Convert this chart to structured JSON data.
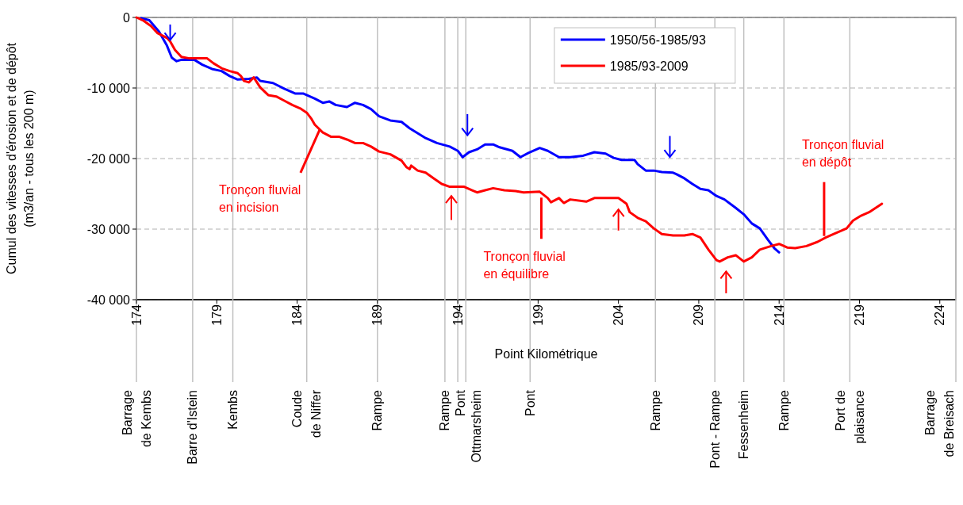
{
  "chart_data": {
    "type": "line",
    "xlabel": "Point Kilométrique",
    "ylabel": "Cumul des vitesses d'érosion et de dépôt\n(m3/an - tous les 200 m)",
    "xlim": [
      174,
      225
    ],
    "xticks": [
      174,
      179,
      184,
      189,
      194,
      199,
      204,
      209,
      214,
      219,
      224
    ],
    "ylim": [
      -40000,
      0
    ],
    "yticks": [
      {
        "value": -40000,
        "label": "-40 000"
      },
      {
        "value": -30000,
        "label": "-30 000"
      },
      {
        "value": -20000,
        "label": "-20 000"
      },
      {
        "value": -10000,
        "label": "-10 000"
      },
      0
    ],
    "grid": "y",
    "legend": "top right",
    "line_style": "solid",
    "marker": "none",
    "series": [
      {
        "name": "1950/56-1985/93",
        "color": "#0000ff",
        "x": [
          174.3,
          174.8,
          175.4,
          175.9,
          176.2,
          176.5,
          176.8,
          177.6,
          178.1,
          178.7,
          179.3,
          179.8,
          180.3,
          181.0,
          181.5,
          181.7,
          182.5,
          183.2,
          183.9,
          184.4,
          185.1,
          185.6,
          186.0,
          186.4,
          187.1,
          187.6,
          188.1,
          188.6,
          189.1,
          189.8,
          190.5,
          191.0,
          191.5,
          192.0,
          192.7,
          193.5,
          194.0,
          194.3,
          194.7,
          195.2,
          195.7,
          196.2,
          196.6,
          197.4,
          197.9,
          198.4,
          199.1,
          199.6,
          200.3,
          201.0,
          201.8,
          202.5,
          203.2,
          203.7,
          204.2,
          205.0,
          205.2,
          205.7,
          206.2,
          206.7,
          207.4,
          207.6,
          208.1,
          208.6,
          209.1,
          209.6,
          210.1,
          210.6,
          211.3,
          211.8,
          212.3,
          212.8,
          213.3,
          213.7,
          214.0
        ],
        "values": [
          -100,
          -400,
          -2000,
          -4000,
          -5700,
          -6200,
          -6000,
          -6000,
          -6700,
          -7300,
          -7600,
          -8300,
          -8800,
          -8700,
          -8500,
          -9000,
          -9300,
          -10100,
          -10800,
          -10800,
          -11500,
          -12100,
          -11900,
          -12400,
          -12700,
          -12100,
          -12400,
          -13000,
          -14000,
          -14600,
          -14800,
          -15700,
          -16400,
          -17100,
          -17800,
          -18300,
          -18900,
          -19800,
          -19100,
          -18700,
          -18000,
          -18000,
          -18400,
          -18900,
          -19800,
          -19200,
          -18500,
          -18900,
          -19800,
          -19800,
          -19600,
          -19100,
          -19300,
          -19900,
          -20200,
          -20200,
          -20800,
          -21700,
          -21700,
          -21900,
          -22000,
          -22200,
          -22800,
          -23600,
          -24300,
          -24500,
          -25300,
          -25800,
          -27000,
          -27900,
          -29200,
          -29900,
          -31500,
          -32700,
          -33300
        ]
      },
      {
        "name": "1985/93-2009",
        "color": "#ff0000",
        "x": [
          174.0,
          174.4,
          174.9,
          175.3,
          175.9,
          176.1,
          176.4,
          176.8,
          177.3,
          178.4,
          178.8,
          179.3,
          179.8,
          180.3,
          180.5,
          180.7,
          181.0,
          181.3,
          181.7,
          182.2,
          182.7,
          183.2,
          183.7,
          184.2,
          184.6,
          184.9,
          185.1,
          185.6,
          186.1,
          186.6,
          187.1,
          187.6,
          188.1,
          188.6,
          189.1,
          189.8,
          190.5,
          190.8,
          191.0,
          191.1,
          191.5,
          192.0,
          192.5,
          193.0,
          193.5,
          194.4,
          194.9,
          195.2,
          195.7,
          196.2,
          196.9,
          197.6,
          198.1,
          199.1,
          199.6,
          199.8,
          200.3,
          200.6,
          201.0,
          202.0,
          202.5,
          204.0,
          204.5,
          204.7,
          205.2,
          205.7,
          206.2,
          206.7,
          207.4,
          208.1,
          208.6,
          209.1,
          209.6,
          210.1,
          210.3,
          210.8,
          211.3,
          211.8,
          212.3,
          212.8,
          213.5,
          214.0,
          214.5,
          215.0,
          215.7,
          216.4,
          216.9,
          217.4,
          218.2,
          218.6,
          219.1,
          219.6,
          220.4
        ],
        "values": [
          0,
          -400,
          -1200,
          -2200,
          -2900,
          -3400,
          -4600,
          -5600,
          -5800,
          -5800,
          -6500,
          -7200,
          -7600,
          -7900,
          -8300,
          -9000,
          -9200,
          -8500,
          -9900,
          -11000,
          -11200,
          -11800,
          -12400,
          -12900,
          -13500,
          -14400,
          -15200,
          -16300,
          -16900,
          -16900,
          -17300,
          -17800,
          -17800,
          -18300,
          -19000,
          -19400,
          -20300,
          -21200,
          -21500,
          -21000,
          -21700,
          -22000,
          -22800,
          -23600,
          -24000,
          -24000,
          -24500,
          -24800,
          -24500,
          -24200,
          -24500,
          -24600,
          -24800,
          -24700,
          -25600,
          -26200,
          -25600,
          -26300,
          -25800,
          -26100,
          -25600,
          -25600,
          -26400,
          -27600,
          -28400,
          -28900,
          -29900,
          -30700,
          -30900,
          -30900,
          -30700,
          -31200,
          -32900,
          -34400,
          -34600,
          -34000,
          -33700,
          -34600,
          -34000,
          -32900,
          -32400,
          -32100,
          -32600,
          -32700,
          -32400,
          -31800,
          -31200,
          -30700,
          -29900,
          -28800,
          -28100,
          -27600,
          -26400
        ]
      }
    ],
    "ref_lines": [
      {
        "axis": "x",
        "value": 174,
        "label": "Barrage\nde Kembs",
        "color": "#c0c0c0"
      },
      {
        "axis": "x",
        "value": 177.5,
        "label": "Barre d'Istein",
        "color": "#c0c0c0"
      },
      {
        "axis": "x",
        "value": 180,
        "label": "Kembs",
        "color": "#c0c0c0"
      },
      {
        "axis": "x",
        "value": 184.6,
        "label": "Coude\nde Niffer",
        "color": "#c0c0c0"
      },
      {
        "axis": "x",
        "value": 189,
        "label": "Rampe",
        "color": "#c0c0c0"
      },
      {
        "axis": "x",
        "value": 193.2,
        "label": "Rampe",
        "color": "#c0c0c0"
      },
      {
        "axis": "x",
        "value": 194,
        "label": "Pont",
        "color": "#c0c0c0"
      },
      {
        "axis": "x",
        "value": 194.5,
        "label": "Ottmarsheim",
        "color": "#c0c0c0"
      },
      {
        "axis": "x",
        "value": 198.5,
        "label": "Pont",
        "color": "#c0c0c0"
      },
      {
        "axis": "x",
        "value": 206.3,
        "label": "Rampe",
        "color": "#c0c0c0"
      },
      {
        "axis": "x",
        "value": 210,
        "label": "Pont - Rampe",
        "color": "#c0c0c0"
      },
      {
        "axis": "x",
        "value": 211.8,
        "label": "Fessenheim",
        "color": "#c0c0c0"
      },
      {
        "axis": "x",
        "value": 214.3,
        "label": "Rampe",
        "color": "#c0c0c0"
      },
      {
        "axis": "x",
        "value": 218.4,
        "label": "Port de\nplaisance",
        "color": "#c0c0c0"
      },
      {
        "axis": "x",
        "value": 225,
        "label": "Barrage\nde Breisach",
        "color": "#c0c0c0"
      }
    ],
    "annotations": [
      {
        "text": "Tronçon fluvial\nen incision",
        "x": 185.3,
        "y": -15500
      },
      {
        "text": "Tronçon fluvial\nen équilibre",
        "x": 199.2,
        "y": -25200
      },
      {
        "text": "Tronçon fluvial\nen dépôt",
        "x": 216.8,
        "y": -31200
      }
    ]
  }
}
